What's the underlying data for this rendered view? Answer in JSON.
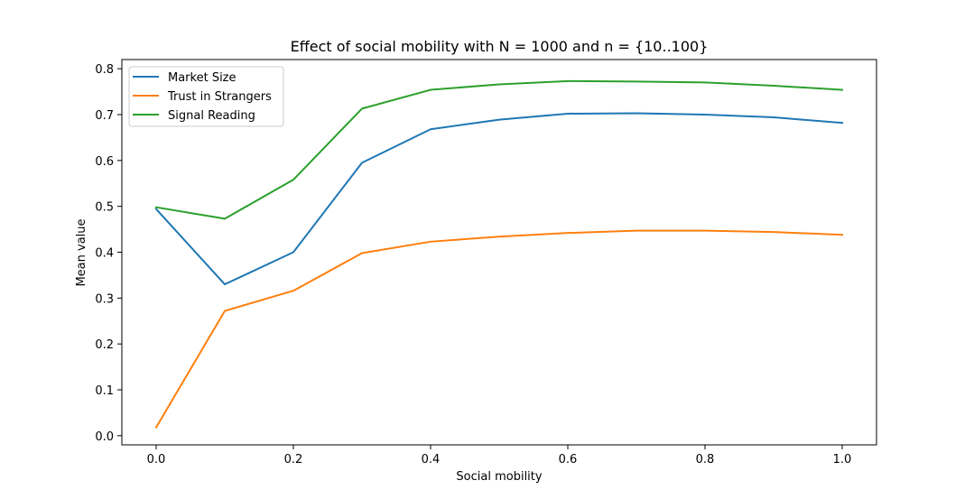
{
  "chart_data": {
    "type": "line",
    "title": "Effect of social mobility with N = 1000 and n = {10..100}",
    "xlabel": "Social mobility",
    "ylabel": "Mean value",
    "xlim": [
      -0.05,
      1.05
    ],
    "ylim": [
      -0.02,
      0.82
    ],
    "x_ticks": [
      "0.0",
      "0.2",
      "0.4",
      "0.6",
      "0.8",
      "1.0"
    ],
    "y_ticks": [
      "0.0",
      "0.1",
      "0.2",
      "0.3",
      "0.4",
      "0.5",
      "0.6",
      "0.7",
      "0.8"
    ],
    "grid": false,
    "legend_position": "upper-left",
    "x": [
      0.0,
      0.1,
      0.2,
      0.3,
      0.4,
      0.5,
      0.6,
      0.7,
      0.8,
      0.9,
      1.0
    ],
    "series": [
      {
        "name": "Market Size",
        "color": "#1f77b4",
        "values": [
          0.494,
          0.33,
          0.4,
          0.595,
          0.668,
          0.689,
          0.702,
          0.703,
          0.7,
          0.694,
          0.682
        ]
      },
      {
        "name": "Trust in Strangers",
        "color": "#ff7f0e",
        "values": [
          0.018,
          0.272,
          0.316,
          0.398,
          0.423,
          0.434,
          0.442,
          0.447,
          0.447,
          0.444,
          0.438
        ]
      },
      {
        "name": "Signal Reading",
        "color": "#2ca02c",
        "values": [
          0.498,
          0.473,
          0.558,
          0.713,
          0.754,
          0.766,
          0.773,
          0.772,
          0.77,
          0.763,
          0.754
        ]
      }
    ]
  }
}
